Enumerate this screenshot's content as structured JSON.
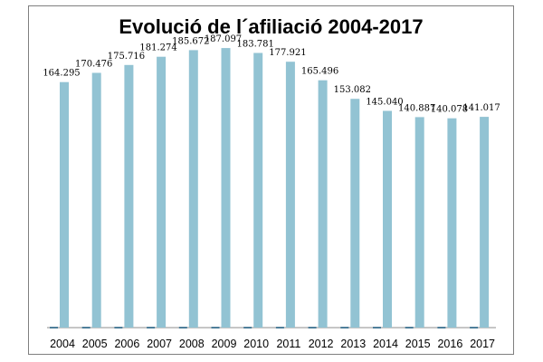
{
  "chart_data": {
    "type": "bar",
    "title": "Evolució de l´afiliació 2004-2017",
    "xlabel": "",
    "ylabel": "",
    "ylim": [
      0,
      195000
    ],
    "grid": false,
    "legend": "none",
    "bar_color": "#92c3d3",
    "secondary_bar_color": "#4f7f9a",
    "categories": [
      "2004",
      "2005",
      "2006",
      "2007",
      "2008",
      "2009",
      "2010",
      "2011",
      "2012",
      "2013",
      "2014",
      "2015",
      "2016",
      "2017"
    ],
    "values": [
      164295,
      170476,
      175716,
      181274,
      185672,
      187097,
      183781,
      177921,
      165496,
      153082,
      145040,
      140887,
      140078,
      141017
    ],
    "value_labels": [
      "164.295",
      "170.476",
      "175.716",
      "181.274",
      "185.672",
      "187.097",
      "183.781",
      "177.921",
      "165.496",
      "153.082",
      "145.040",
      "140.887",
      "140.078",
      "141.017"
    ]
  }
}
